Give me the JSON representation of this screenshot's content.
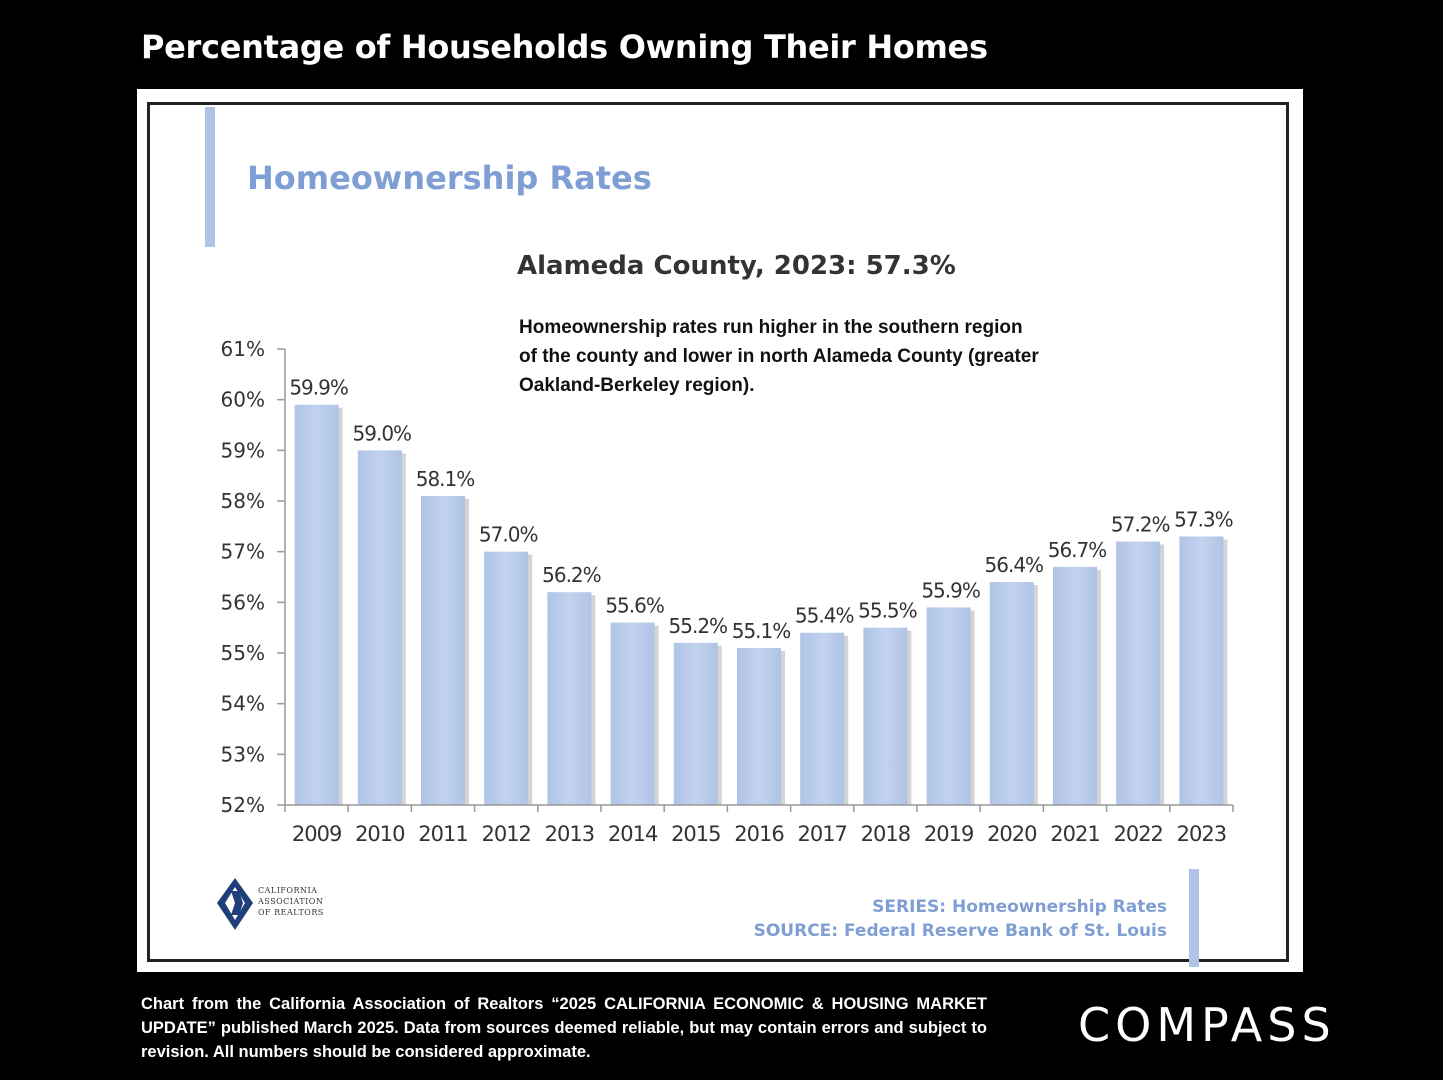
{
  "page_title": "Percentage of Households Owning Their Homes",
  "chart_heading": "Homeownership Rates",
  "subtitle": "Alameda County, 2023: 57.3%",
  "note": "Homeownership rates run higher in the southern region of the county and lower in north Alameda County (greater Oakland-Berkeley region).",
  "logo_text": [
    "CALIFORNIA",
    "ASSOCIATION",
    "OF REALTORS"
  ],
  "series_line": "SERIES: Homeownership Rates",
  "source_line": "SOURCE: Federal Reserve Bank of St. Louis",
  "footer_note": "Chart from the California Association of Realtors “2025 CALIFORNIA ECONOMIC & HOUSING MARKET UPDATE” published March 2025. Data from sources deemed reliable, but may contain errors and subject to revision. All numbers should be considered approximate.",
  "compass_logo": "COMPASS",
  "colors": {
    "bar": "#b8cbea",
    "bar_shadow": "#d4d4d4",
    "heading": "#7f9ed4",
    "accent": "#aec3e6"
  },
  "chart_data": {
    "type": "bar",
    "title": "Homeownership Rates",
    "subtitle": "Alameda County, 2023: 57.3%",
    "categories": [
      "2009",
      "2010",
      "2011",
      "2012",
      "2013",
      "2014",
      "2015",
      "2016",
      "2017",
      "2018",
      "2019",
      "2020",
      "2021",
      "2022",
      "2023"
    ],
    "values": [
      59.9,
      59.0,
      58.1,
      57.0,
      56.2,
      55.6,
      55.2,
      55.1,
      55.4,
      55.5,
      55.9,
      56.4,
      56.7,
      57.2,
      57.3
    ],
    "data_labels": [
      "59.9%",
      "59.0%",
      "58.1%",
      "57.0%",
      "56.2%",
      "55.6%",
      "55.2%",
      "55.1%",
      "55.4%",
      "55.5%",
      "55.9%",
      "56.4%",
      "56.7%",
      "57.2%",
      "57.3%"
    ],
    "y_ticks": [
      "52%",
      "53%",
      "54%",
      "55%",
      "56%",
      "57%",
      "58%",
      "59%",
      "60%",
      "61%"
    ],
    "ylim": [
      52,
      61
    ],
    "xlabel": "",
    "ylabel": "",
    "grid": false,
    "legend": "none"
  }
}
